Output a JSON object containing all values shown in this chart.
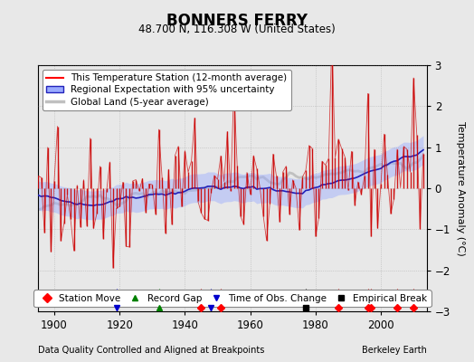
{
  "title": "BONNERS FERRY",
  "subtitle": "48.700 N, 116.308 W (United States)",
  "ylabel": "Temperature Anomaly (°C)",
  "footer_left": "Data Quality Controlled and Aligned at Breakpoints",
  "footer_right": "Berkeley Earth",
  "xlim": [
    1895,
    2014
  ],
  "ylim": [
    -3,
    3
  ],
  "yticks": [
    -3,
    -2,
    -1,
    0,
    1,
    2,
    3
  ],
  "xticks": [
    1900,
    1920,
    1940,
    1960,
    1980,
    2000
  ],
  "seed": 42,
  "background_color": "#e8e8e8",
  "plot_bg_color": "#e8e8e8",
  "station_moves": [
    1945,
    1951,
    1987,
    1996,
    1997,
    2005,
    2010
  ],
  "record_gaps": [
    1932
  ],
  "tobs_changes": [
    1919,
    1948
  ],
  "empirical_breaks": [
    1977
  ],
  "legend1_fontsize": 7.5,
  "legend2_fontsize": 7.5
}
